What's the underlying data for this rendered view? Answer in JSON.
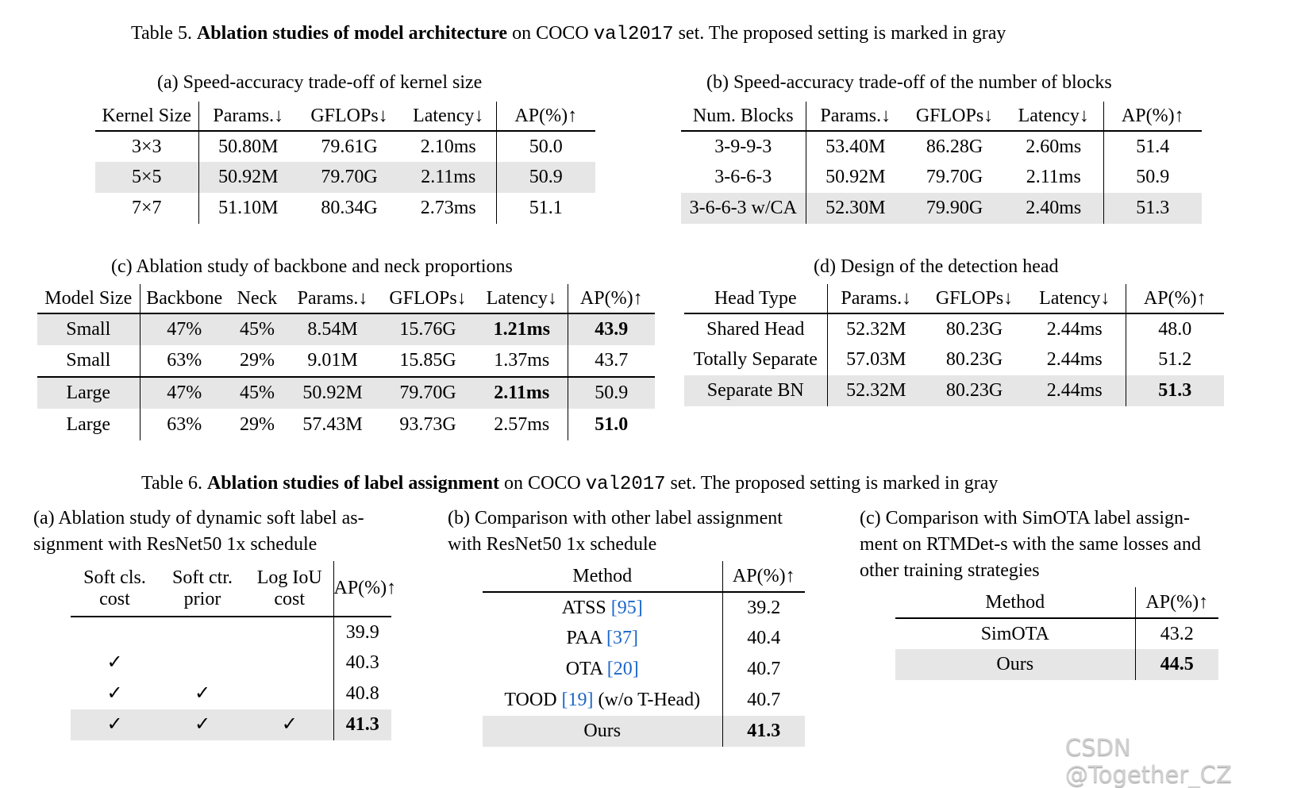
{
  "table5": {
    "caption": {
      "label": "Table 5.",
      "title": "Ablation studies of model architecture",
      "mid": " on COCO ",
      "code": "val2017",
      "tail": " set. The proposed setting is marked in gray"
    },
    "a": {
      "caption": "(a) Speed-accuracy trade-off of kernel size",
      "headers": [
        "Kernel Size",
        "Params.↓",
        "GFLOPs↓",
        "Latency↓",
        "AP(%)↑"
      ],
      "rows": [
        {
          "cells": [
            "3×3",
            "50.80M",
            "79.61G",
            "2.10ms",
            "50.0"
          ]
        },
        {
          "cells": [
            "5×5",
            "50.92M",
            "79.70G",
            "2.11ms",
            "50.9"
          ],
          "highlight": true
        },
        {
          "cells": [
            "7×7",
            "51.10M",
            "80.34G",
            "2.73ms",
            "51.1"
          ]
        }
      ]
    },
    "b": {
      "caption": "(b) Speed-accuracy trade-off of the number of blocks",
      "headers": [
        "Num. Blocks",
        "Params.↓",
        "GFLOPs↓",
        "Latency↓",
        "AP(%)↑"
      ],
      "rows": [
        {
          "cells": [
            "3-9-9-3",
            "53.40M",
            "86.28G",
            "2.60ms",
            "51.4"
          ]
        },
        {
          "cells": [
            "3-6-6-3",
            "50.92M",
            "79.70G",
            "2.11ms",
            "50.9"
          ]
        },
        {
          "cells": [
            "3-6-6-3 w/CA",
            "52.30M",
            "79.90G",
            "2.40ms",
            "51.3"
          ],
          "highlight": true
        }
      ]
    },
    "c": {
      "caption": "(c) Ablation study of backbone and neck proportions",
      "headers": [
        "Model Size",
        "Backbone",
        "Neck",
        "Params.↓",
        "GFLOPs↓",
        "Latency↓",
        "AP(%)↑"
      ],
      "rows": [
        {
          "cells": [
            "Small",
            "47%",
            "45%",
            "8.54M",
            "15.76G",
            "1.21ms",
            "43.9"
          ],
          "highlight": true,
          "bold": [
            5,
            6
          ]
        },
        {
          "cells": [
            "Small",
            "63%",
            "29%",
            "9.01M",
            "15.85G",
            "1.37ms",
            "43.7"
          ]
        },
        {
          "cells": [
            "Large",
            "47%",
            "45%",
            "50.92M",
            "79.70G",
            "2.11ms",
            "50.9"
          ],
          "highlight": true,
          "bold": [
            5
          ]
        },
        {
          "cells": [
            "Large",
            "63%",
            "29%",
            "57.43M",
            "93.73G",
            "2.57ms",
            "51.0"
          ],
          "bold": [
            6
          ]
        }
      ]
    },
    "d": {
      "caption": "(d) Design of the detection head",
      "headers": [
        "Head Type",
        "Params.↓",
        "GFLOPs↓",
        "Latency↓",
        "AP(%)↑"
      ],
      "rows": [
        {
          "cells": [
            "Shared Head",
            "52.32M",
            "80.23G",
            "2.44ms",
            "48.0"
          ]
        },
        {
          "cells": [
            "Totally Separate",
            "57.03M",
            "80.23G",
            "2.44ms",
            "51.2"
          ]
        },
        {
          "cells": [
            "Separate BN",
            "52.32M",
            "80.23G",
            "2.44ms",
            "51.3"
          ],
          "highlight": true,
          "bold": [
            4
          ]
        }
      ]
    }
  },
  "table6": {
    "caption": {
      "label": "Table 6.",
      "title": "Ablation studies of label assignment",
      "mid": " on COCO ",
      "code": "val2017",
      "tail": " set. The proposed setting is marked in gray"
    },
    "a": {
      "caption": [
        "(a) Ablation study of dynamic soft label as-",
        "signment with ResNet50 1x schedule"
      ],
      "headers": [
        "Soft cls.\ncost",
        "Soft ctr.\nprior",
        "Log IoU\ncost",
        "AP(%)↑"
      ],
      "rows": [
        {
          "cells": [
            "",
            "",
            "",
            "39.9"
          ]
        },
        {
          "cells": [
            "✓",
            "",
            "",
            "40.3"
          ]
        },
        {
          "cells": [
            "✓",
            "✓",
            "",
            "40.8"
          ]
        },
        {
          "cells": [
            "✓",
            "✓",
            "✓",
            "41.3"
          ],
          "highlight": true,
          "bold": [
            3
          ]
        }
      ]
    },
    "b": {
      "caption": [
        "(b) Comparison with other label assignment",
        "with ResNet50 1x schedule"
      ],
      "headers": [
        "Method",
        "AP(%)↑"
      ],
      "rows": [
        {
          "cells": [
            "ATSS",
            "39.2"
          ],
          "ref": "[95]"
        },
        {
          "cells": [
            "PAA",
            "40.4"
          ],
          "ref": "[37]"
        },
        {
          "cells": [
            "OTA",
            "40.7"
          ],
          "ref": "[20]"
        },
        {
          "cells": [
            "TOOD",
            "40.7"
          ],
          "ref": "[19]",
          "suffix": " (w/o T-Head)"
        },
        {
          "cells": [
            "Ours",
            "41.3"
          ],
          "highlight": true,
          "bold": [
            1
          ]
        }
      ]
    },
    "c": {
      "caption": [
        "(c) Comparison with SimOTA label assign-",
        "ment on RTMDet-s with the same losses and",
        "other training strategies"
      ],
      "headers": [
        "Method",
        "AP(%)↑"
      ],
      "rows": [
        {
          "cells": [
            "SimOTA",
            "43.2"
          ]
        },
        {
          "cells": [
            "Ours",
            "44.5"
          ],
          "highlight": true,
          "bold": [
            1
          ]
        }
      ]
    }
  },
  "watermark": "CSDN @Together_CZ",
  "colors": {
    "highlight": "#e6e6e6",
    "citation": "#1a66c8"
  }
}
